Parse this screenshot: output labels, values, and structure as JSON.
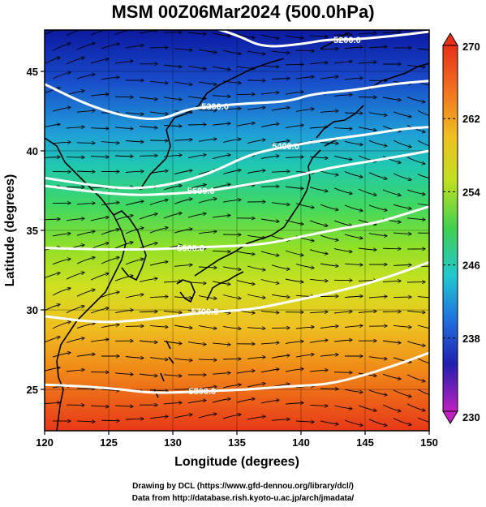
{
  "title": "MSM 00Z06Mar2024 (500.0hPa)",
  "xaxis": {
    "label": "Longitude (degrees)",
    "range": [
      120,
      150
    ],
    "ticks": [
      {
        "v": 120,
        "t": "120"
      },
      {
        "v": 125,
        "t": "125"
      },
      {
        "v": 130,
        "t": "130"
      },
      {
        "v": 135,
        "t": "135"
      },
      {
        "v": 140,
        "t": "140"
      },
      {
        "v": 145,
        "t": "145"
      },
      {
        "v": 150,
        "t": "150"
      }
    ]
  },
  "yaxis": {
    "label": "Latitude  (degrees)",
    "range": [
      22.4,
      47.6
    ],
    "ticks": [
      {
        "v": 25,
        "t": "25"
      },
      {
        "v": 30,
        "t": "30"
      },
      {
        "v": 35,
        "t": "35"
      },
      {
        "v": 40,
        "t": "40"
      },
      {
        "v": 45,
        "t": "45"
      }
    ]
  },
  "colorbar": {
    "range": [
      230,
      270
    ],
    "ticks": [
      {
        "v": 270,
        "t": "270"
      },
      {
        "v": 262,
        "t": "262"
      },
      {
        "v": 254,
        "t": "254"
      },
      {
        "v": 246,
        "t": "246"
      },
      {
        "v": 238,
        "t": "238"
      },
      {
        "v": 230,
        "t": "230"
      }
    ],
    "colors": [
      "#d020b0",
      "#3030d0",
      "#2080e0",
      "#20c8d0",
      "#30d070",
      "#a0e020",
      "#f0d020",
      "#f08020",
      "#e03020"
    ]
  },
  "contours": [
    {
      "label": "5200.0",
      "points": [
        [
          129,
          48.4
        ],
        [
          132,
          48.0
        ],
        [
          135,
          47.3
        ],
        [
          137,
          46.5
        ],
        [
          140,
          46.7
        ],
        [
          142,
          47.0
        ],
        [
          144,
          47.0
        ],
        [
          147,
          47.2
        ],
        [
          150,
          47.5
        ]
      ],
      "label_at": [
        143.6,
        47.0
      ]
    },
    {
      "label": "5300.0",
      "points": [
        [
          120,
          44.2
        ],
        [
          123,
          43.0
        ],
        [
          126,
          42.2
        ],
        [
          129,
          41.9
        ],
        [
          131,
          42.6
        ],
        [
          133,
          42.8
        ],
        [
          136,
          43.0
        ],
        [
          139,
          43.1
        ],
        [
          141,
          43.6
        ],
        [
          144,
          43.8
        ],
        [
          147,
          44.2
        ],
        [
          150,
          44.4
        ]
      ],
      "label_at": [
        133.3,
        42.8
      ]
    },
    {
      "label": "5400.0",
      "points": [
        [
          120,
          38.3
        ],
        [
          124,
          37.8
        ],
        [
          127,
          37.6
        ],
        [
          130,
          37.9
        ],
        [
          133,
          38.6
        ],
        [
          136,
          39.8
        ],
        [
          139,
          40.3
        ],
        [
          142,
          40.7
        ],
        [
          145,
          41.0
        ],
        [
          148,
          41.4
        ],
        [
          150,
          41.5
        ]
      ],
      "label_at": [
        138.8,
        40.3
      ]
    },
    {
      "label": "5500.0",
      "points": [
        [
          120,
          37.8
        ],
        [
          124,
          37.4
        ],
        [
          127,
          37.2
        ],
        [
          130,
          37.3
        ],
        [
          133,
          37.5
        ],
        [
          136,
          37.9
        ],
        [
          139,
          38.3
        ],
        [
          142,
          38.9
        ],
        [
          145,
          39.3
        ],
        [
          148,
          39.7
        ],
        [
          150,
          40.0
        ]
      ],
      "label_at": [
        132.2,
        37.5
      ]
    },
    {
      "label": "5600.0",
      "points": [
        [
          120,
          33.9
        ],
        [
          124,
          33.8
        ],
        [
          128,
          33.8
        ],
        [
          131,
          33.9
        ],
        [
          134,
          34.0
        ],
        [
          137,
          34.1
        ],
        [
          140,
          34.6
        ],
        [
          143,
          35.1
        ],
        [
          146,
          35.5
        ],
        [
          148,
          36.0
        ],
        [
          150,
          36.5
        ]
      ],
      "label_at": [
        131.4,
        33.9
      ]
    },
    {
      "label": "5700.0",
      "points": [
        [
          120,
          29.6
        ],
        [
          124,
          29.2
        ],
        [
          127,
          29.3
        ],
        [
          130,
          29.6
        ],
        [
          133,
          29.9
        ],
        [
          136,
          30.0
        ],
        [
          139,
          30.5
        ],
        [
          142,
          31.0
        ],
        [
          145,
          31.6
        ],
        [
          148,
          32.4
        ],
        [
          150,
          33.0
        ]
      ],
      "label_at": [
        132.5,
        29.9
      ]
    },
    {
      "label": "5800.0",
      "points": [
        [
          120,
          25.3
        ],
        [
          123,
          25.2
        ],
        [
          126,
          25.0
        ],
        [
          128,
          24.8
        ],
        [
          130,
          24.8
        ],
        [
          133,
          24.9
        ],
        [
          136,
          25.0
        ],
        [
          139,
          25.2
        ],
        [
          142,
          25.3
        ],
        [
          145,
          25.9
        ],
        [
          148,
          26.7
        ],
        [
          150,
          27.3
        ]
      ],
      "label_at": [
        132.3,
        24.9
      ]
    }
  ],
  "credits": [
    "Drawing by DCL (https://www.gfd-dennou.org/library/dcl/)",
    "Data from http://database.rish.kyoto-u.ac.jp/arch/jmadata/"
  ]
}
